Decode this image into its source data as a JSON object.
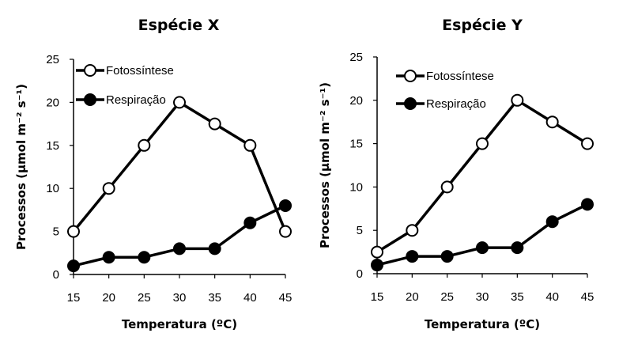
{
  "chart_data": [
    {
      "type": "line",
      "title": "Espécie X",
      "xlabel": "Temperatura (ºC)",
      "ylabel": "Processos (µmol m⁻² s⁻¹)",
      "x": [
        15,
        20,
        25,
        30,
        35,
        40,
        45
      ],
      "xlim": [
        15,
        45
      ],
      "ylim": [
        0,
        25
      ],
      "yticks": [
        0,
        5,
        10,
        15,
        20,
        25
      ],
      "grid": false,
      "legend_position": "top-left",
      "series": [
        {
          "name": "Fotossíntese",
          "marker": "open-circle",
          "values": [
            5,
            10,
            15,
            20,
            17.5,
            15,
            5
          ]
        },
        {
          "name": "Respiração",
          "marker": "filled-circle",
          "values": [
            1,
            2,
            2,
            3,
            3,
            6,
            8
          ]
        }
      ]
    },
    {
      "type": "line",
      "title": "Espécie Y",
      "xlabel": "Temperatura (ºC)",
      "ylabel": "Processos (µmol m⁻² s⁻¹)",
      "x": [
        15,
        20,
        25,
        30,
        35,
        40,
        45
      ],
      "xlim": [
        15,
        45
      ],
      "ylim": [
        0,
        25
      ],
      "yticks": [
        0,
        5,
        10,
        15,
        20,
        25
      ],
      "grid": false,
      "legend_position": "top-left",
      "series": [
        {
          "name": "Fotossíntese",
          "marker": "open-circle",
          "values": [
            2.5,
            5,
            10,
            15,
            20,
            17.5,
            15
          ]
        },
        {
          "name": "Respiração",
          "marker": "filled-circle",
          "values": [
            1,
            2,
            2,
            3,
            3,
            6,
            8
          ]
        }
      ]
    }
  ]
}
